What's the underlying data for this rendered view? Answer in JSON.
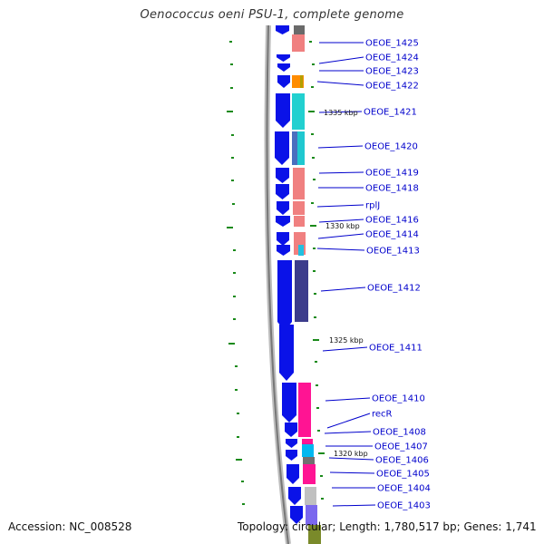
{
  "title": "Oenococcus oeni PSU-1, complete genome",
  "footer": {
    "accession": "Accession: NC_008528",
    "topology": "Topology: circular; Length: 1,780,517 bp; Genes: 1,741"
  },
  "gene_labels": [
    {
      "text": "OEOE_1425"
    },
    {
      "text": "OEOE_1424"
    },
    {
      "text": "OEOE_1423"
    },
    {
      "text": "OEOE_1422"
    },
    {
      "text": "OEOE_1421"
    },
    {
      "text": "OEOE_1420"
    },
    {
      "text": "OEOE_1419"
    },
    {
      "text": "OEOE_1418"
    },
    {
      "text": "rplJ"
    },
    {
      "text": "OEOE_1416"
    },
    {
      "text": "OEOE_1414"
    },
    {
      "text": "OEOE_1413"
    },
    {
      "text": "OEOE_1412"
    },
    {
      "text": "OEOE_1411"
    },
    {
      "text": "OEOE_1410"
    },
    {
      "text": "recR"
    },
    {
      "text": "OEOE_1408"
    },
    {
      "text": "OEOE_1407"
    },
    {
      "text": "OEOE_1406"
    },
    {
      "text": "OEOE_1405"
    },
    {
      "text": "OEOE_1404"
    },
    {
      "text": "OEOE_1403"
    }
  ],
  "kbp_labels": [
    {
      "text": "1335 kbp"
    },
    {
      "text": "1330 kbp"
    },
    {
      "text": "1325 kbp"
    },
    {
      "text": "1320 kbp"
    }
  ],
  "colors": {
    "gene_arrow": "#0a12e8",
    "backbone": "#8a8a8a",
    "label": "#0000cc",
    "tick": "#1a8a1a"
  }
}
